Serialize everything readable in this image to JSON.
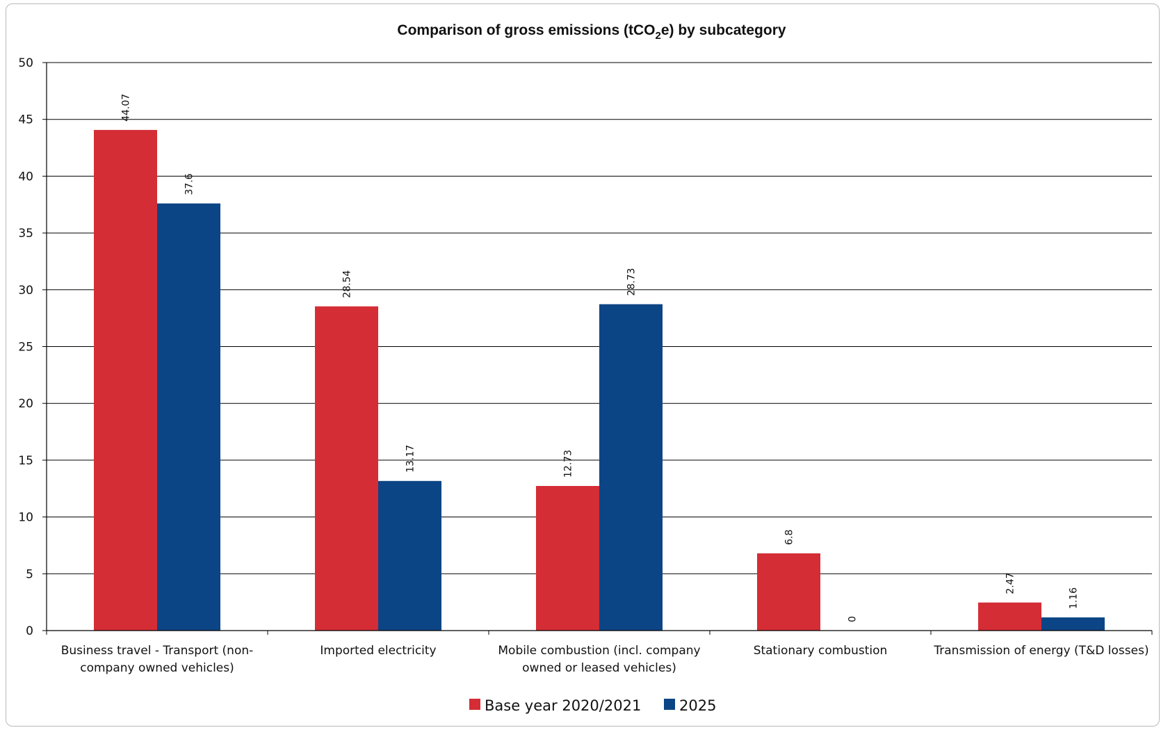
{
  "chart_data": {
    "type": "bar",
    "title_parts": {
      "before": "Comparison of gross emissions (tCO",
      "subscript": "2",
      "after": "e) by subcategory"
    },
    "categories": [
      [
        "Business travel - Transport (non-",
        "company owned vehicles)"
      ],
      [
        "Imported electricity"
      ],
      [
        "Mobile combustion (incl. company",
        "owned or leased vehicles)"
      ],
      [
        "Stationary combustion"
      ],
      [
        "Transmission of energy (T&D losses)"
      ]
    ],
    "series": [
      {
        "name": "Base year 2020/2021",
        "color": "#d42d35",
        "values": [
          44.07,
          28.54,
          12.73,
          6.8,
          2.47
        ]
      },
      {
        "name": "2025",
        "color": "#0c4585",
        "values": [
          37.6,
          13.17,
          28.73,
          0,
          1.16
        ]
      }
    ],
    "ylim": [
      0,
      50
    ],
    "yticks": [
      0,
      5,
      10,
      15,
      20,
      25,
      30,
      35,
      40,
      45,
      50
    ],
    "grid": true,
    "legend": "bottom"
  }
}
